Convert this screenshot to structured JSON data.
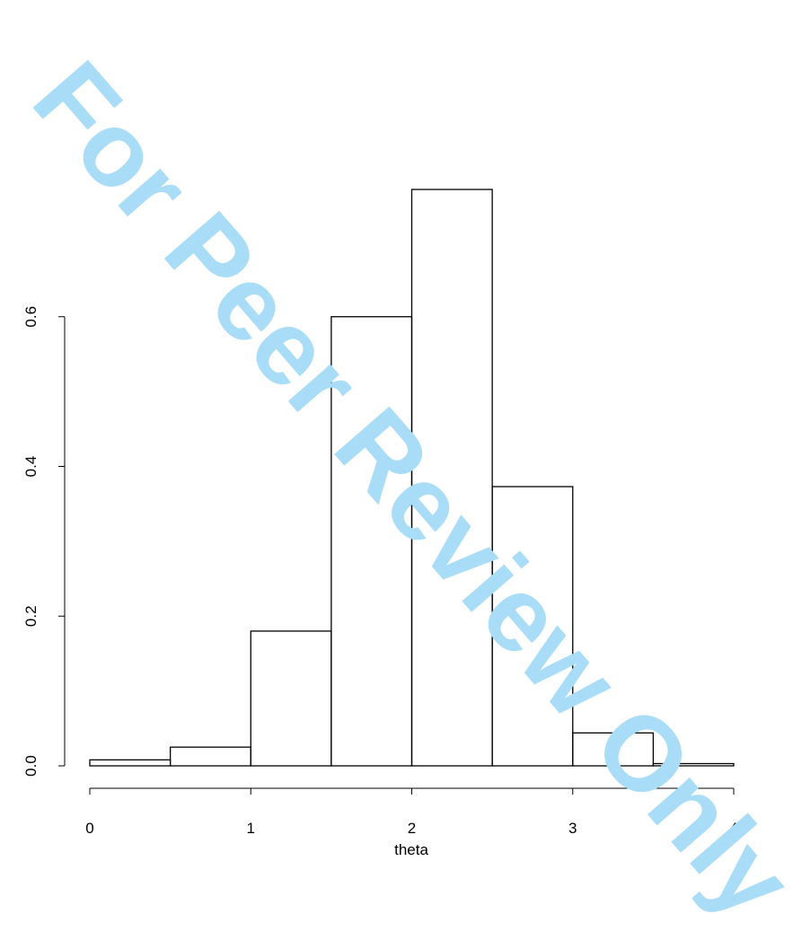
{
  "chart_data": {
    "type": "histogram",
    "xlabel": "theta",
    "bins": [
      0,
      0.5,
      1,
      1.5,
      2,
      2.5,
      3,
      3.5,
      4
    ],
    "values": [
      0.008,
      0.025,
      0.18,
      0.6,
      0.77,
      0.373,
      0.044,
      0.003
    ],
    "color": "none",
    "edgecolor": "#000000",
    "xlim": [
      0,
      4
    ],
    "xticks": [
      0,
      1,
      2,
      3,
      4
    ],
    "ylim": [
      0,
      0.8
    ],
    "yticks": [
      {
        "value": 0,
        "label": "0.0"
      },
      0.2,
      0.4,
      0.6
    ],
    "grid": false,
    "watermark": "For Peer Review Only"
  }
}
